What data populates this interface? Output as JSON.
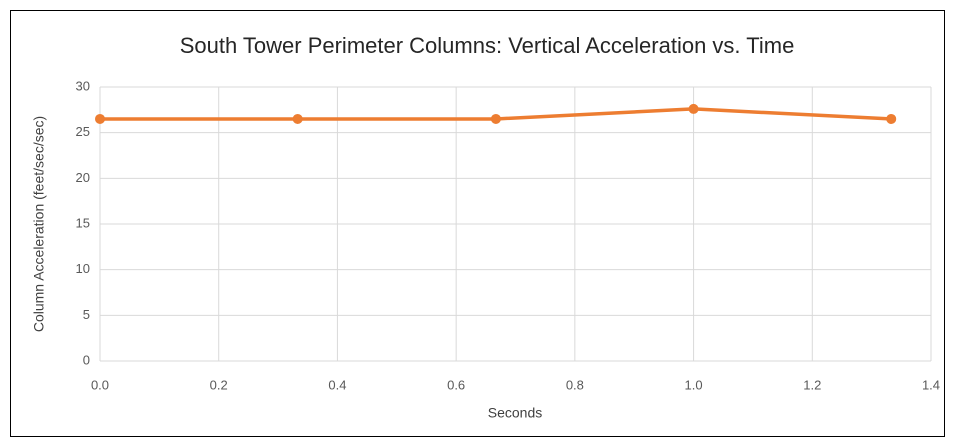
{
  "chart_data": {
    "type": "line",
    "title": "South Tower Perimeter Columns: Vertical Acceleration vs. Time",
    "x_label": "Seconds",
    "y_label": "Column Acceleration (feet/sec/sec)",
    "x": [
      0,
      0.333,
      0.667,
      1.0,
      1.333
    ],
    "series": [
      {
        "name": "Column Acceleration",
        "color": "#ed7d31",
        "values": [
          26.5,
          26.5,
          26.5,
          27.6,
          26.5
        ]
      }
    ],
    "xlim": [
      0,
      1.4
    ],
    "xticks": [
      {
        "value": 0,
        "label": "0.0"
      },
      0.2,
      0.4,
      0.6,
      0.8,
      {
        "value": 1,
        "label": "1.0"
      },
      1.2,
      1.4
    ],
    "ylim": [
      0,
      30
    ],
    "yticks": [
      0,
      5,
      10,
      15,
      20,
      25,
      30
    ],
    "grid": true
  }
}
